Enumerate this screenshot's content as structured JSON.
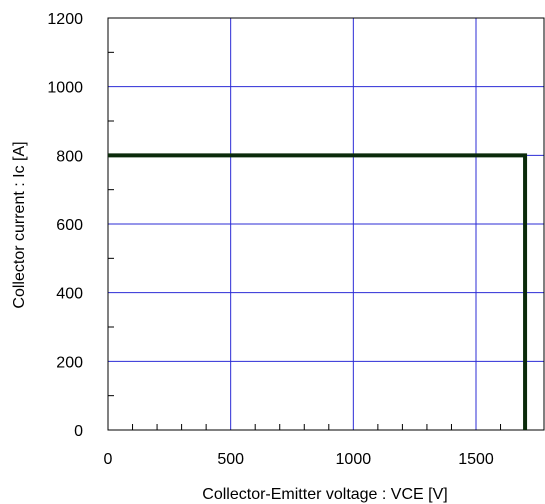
{
  "chart_data": {
    "type": "line",
    "title": "",
    "xlabel": "Collector-Emitter voltage : VCE [V]",
    "ylabel": "Collector current : Ic [A]",
    "xlim": [
      0,
      1700
    ],
    "ylim": [
      0,
      1200
    ],
    "x_ticks": [
      0,
      500,
      1000,
      1500
    ],
    "y_ticks": [
      0,
      200,
      400,
      600,
      800,
      1000,
      1200
    ],
    "x_tick_labels": [
      "0",
      "500",
      "1000",
      "1500"
    ],
    "y_tick_labels": [
      "0",
      "200",
      "400",
      "600",
      "800",
      "1000",
      "1200"
    ],
    "grid": true,
    "series": [
      {
        "x": [
          0,
          1700,
          1700
        ],
        "y": [
          800,
          800,
          0
        ]
      }
    ],
    "colors": {
      "grid": "#2b2bd6",
      "line": "#0b2b0b",
      "axis": "#000000"
    }
  }
}
